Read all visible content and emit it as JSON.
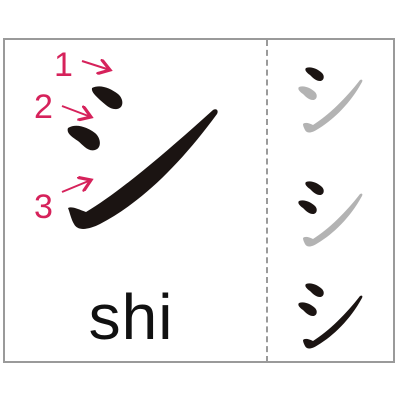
{
  "character": "シ",
  "romaji": "shi",
  "stroke_count": 3,
  "stroke_numbers": [
    "1",
    "2",
    "3"
  ],
  "colors": {
    "ink": "#1b1412",
    "faded": "#b3b3b3",
    "annotation": "#d6225b",
    "border": "#9a9a9a"
  }
}
